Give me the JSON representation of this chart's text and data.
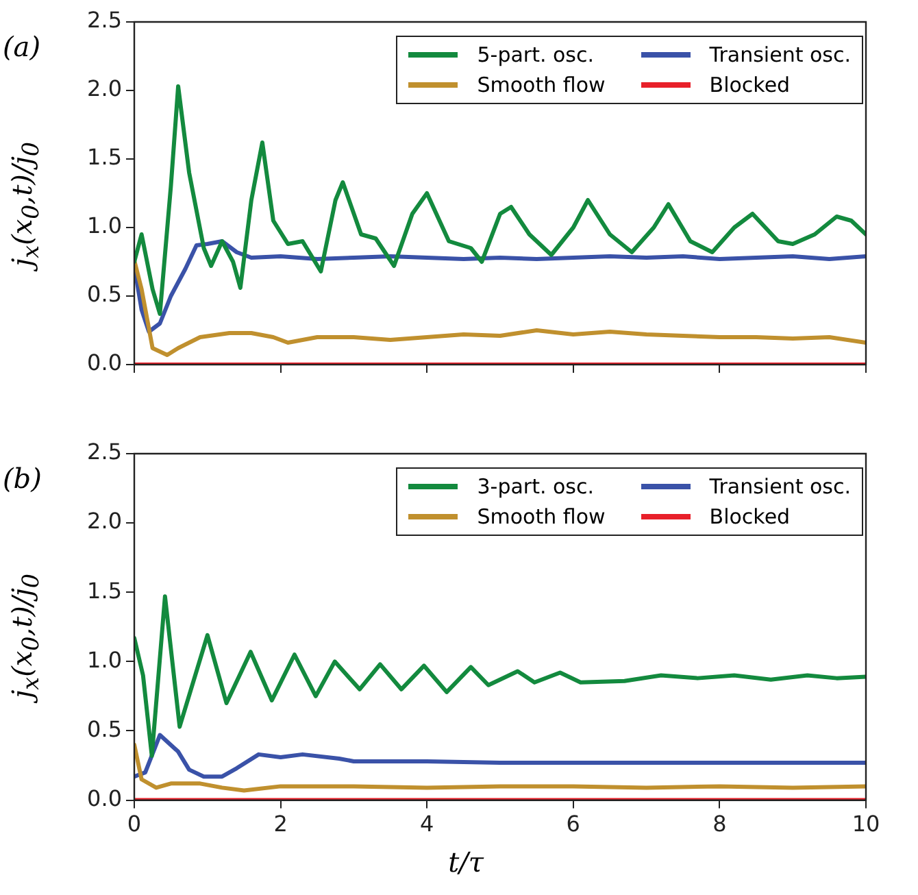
{
  "chart_data": [
    {
      "type": "line",
      "ylabel": "j$_{x}$(x$_{0}$,t)/j$_{0}$",
      "annotations": [
        "(a)"
      ],
      "legend": "top right",
      "grid": false,
      "marker": "none",
      "line_style": "solid",
      "tick_labels": "y",
      "xlim": [
        0,
        10
      ],
      "xticks": [
        0,
        2,
        4,
        6,
        8,
        10
      ],
      "ylim": [
        0,
        2.5
      ],
      "yticks": [
        {
          "value": 0,
          "label": "0.0"
        },
        {
          "value": 0.5,
          "label": "0.5"
        },
        {
          "value": 1,
          "label": "1.0"
        },
        {
          "value": 1.5,
          "label": "1.5"
        },
        {
          "value": 2,
          "label": "2.0"
        },
        {
          "value": 2.5,
          "label": "2.5"
        }
      ],
      "series": [
        {
          "name": "5-part. osc.",
          "color": "#138a3e",
          "x": [
            0,
            0.1,
            0.25,
            0.35,
            0.5,
            0.6,
            0.75,
            0.95,
            1.05,
            1.2,
            1.35,
            1.45,
            1.6,
            1.75,
            1.9,
            2.1,
            2.3,
            2.55,
            2.75,
            2.85,
            3.1,
            3.3,
            3.55,
            3.8,
            4.0,
            4.3,
            4.6,
            4.75,
            5.0,
            5.15,
            5.4,
            5.7,
            6.0,
            6.2,
            6.5,
            6.8,
            7.1,
            7.3,
            7.6,
            7.9,
            8.2,
            8.45,
            8.8,
            9.0,
            9.3,
            9.6,
            9.8,
            10
          ],
          "values": [
            0.75,
            0.95,
            0.55,
            0.37,
            1.3,
            2.03,
            1.4,
            0.85,
            0.72,
            0.9,
            0.75,
            0.56,
            1.2,
            1.62,
            1.05,
            0.88,
            0.9,
            0.68,
            1.2,
            1.33,
            0.95,
            0.92,
            0.72,
            1.1,
            1.25,
            0.9,
            0.85,
            0.75,
            1.1,
            1.15,
            0.95,
            0.8,
            1.0,
            1.2,
            0.95,
            0.82,
            1.0,
            1.17,
            0.9,
            0.82,
            1.0,
            1.1,
            0.9,
            0.88,
            0.95,
            1.08,
            1.05,
            0.95
          ]
        },
        {
          "name": "Smooth flow",
          "color": "#c0902e",
          "x": [
            0,
            0.1,
            0.25,
            0.45,
            0.6,
            0.9,
            1.3,
            1.6,
            1.9,
            2.1,
            2.5,
            3.0,
            3.5,
            4.0,
            4.5,
            5.0,
            5.5,
            6.0,
            6.5,
            7.0,
            7.5,
            8.0,
            8.5,
            9.0,
            9.5,
            10
          ],
          "values": [
            0.76,
            0.55,
            0.12,
            0.07,
            0.12,
            0.2,
            0.23,
            0.23,
            0.2,
            0.16,
            0.2,
            0.2,
            0.18,
            0.2,
            0.22,
            0.21,
            0.25,
            0.22,
            0.24,
            0.22,
            0.21,
            0.2,
            0.2,
            0.19,
            0.2,
            0.16
          ]
        },
        {
          "name": "Transient osc.",
          "color": "#3a52a8",
          "x": [
            0,
            0.1,
            0.2,
            0.35,
            0.5,
            0.7,
            0.85,
            1.0,
            1.2,
            1.4,
            1.6,
            2.0,
            2.5,
            3.0,
            3.5,
            4.0,
            4.5,
            5.0,
            5.5,
            6.0,
            6.5,
            7.0,
            7.5,
            8.0,
            8.5,
            9.0,
            9.5,
            10
          ],
          "values": [
            0.72,
            0.4,
            0.24,
            0.3,
            0.5,
            0.7,
            0.87,
            0.88,
            0.9,
            0.82,
            0.78,
            0.79,
            0.77,
            0.78,
            0.79,
            0.78,
            0.77,
            0.78,
            0.77,
            0.78,
            0.79,
            0.78,
            0.79,
            0.77,
            0.78,
            0.79,
            0.77,
            0.79
          ]
        },
        {
          "name": "Blocked",
          "color": "#e8202a",
          "x": [
            0,
            10
          ],
          "values": [
            0,
            0
          ]
        }
      ]
    },
    {
      "type": "line",
      "xlabel": "t/τ",
      "ylabel": "j$_{x}$(x$_{0}$,t)/j$_{0}$",
      "annotations": [
        "(b)"
      ],
      "legend": "top right",
      "grid": false,
      "marker": "none",
      "line_style": "solid",
      "xlim": [
        0,
        10
      ],
      "xticks": [
        0,
        2,
        4,
        6,
        8,
        10
      ],
      "ylim": [
        0,
        2.5
      ],
      "yticks": [
        {
          "value": 0,
          "label": "0.0"
        },
        {
          "value": 0.5,
          "label": "0.5"
        },
        {
          "value": 1,
          "label": "1.0"
        },
        {
          "value": 1.5,
          "label": "1.5"
        },
        {
          "value": 2,
          "label": "2.0"
        },
        {
          "value": 2.5,
          "label": "2.5"
        }
      ],
      "series": [
        {
          "name": "3-part. osc.",
          "color": "#138a3e",
          "x": [
            0,
            0.12,
            0.24,
            0.42,
            0.62,
            1.0,
            1.26,
            1.59,
            1.88,
            2.19,
            2.48,
            2.74,
            3.08,
            3.36,
            3.65,
            3.96,
            4.27,
            4.6,
            4.84,
            5.24,
            5.47,
            5.82,
            6.1,
            6.7,
            7.2,
            7.7,
            8.2,
            8.7,
            9.2,
            9.6,
            10
          ],
          "values": [
            1.17,
            0.9,
            0.32,
            1.47,
            0.53,
            1.19,
            0.7,
            1.07,
            0.72,
            1.05,
            0.75,
            1.0,
            0.8,
            0.98,
            0.8,
            0.97,
            0.78,
            0.96,
            0.83,
            0.93,
            0.85,
            0.92,
            0.85,
            0.86,
            0.9,
            0.88,
            0.9,
            0.87,
            0.9,
            0.88,
            0.89
          ]
        },
        {
          "name": "Smooth flow",
          "color": "#c0902e",
          "x": [
            0,
            0.1,
            0.3,
            0.5,
            0.9,
            1.2,
            1.5,
            2,
            3,
            4,
            5,
            6,
            7,
            8,
            9,
            10
          ],
          "values": [
            0.4,
            0.15,
            0.09,
            0.12,
            0.12,
            0.09,
            0.07,
            0.1,
            0.1,
            0.09,
            0.1,
            0.1,
            0.09,
            0.1,
            0.09,
            0.1
          ]
        },
        {
          "name": "Transient osc.",
          "color": "#3a52a8",
          "x": [
            0,
            0.15,
            0.35,
            0.6,
            0.75,
            0.95,
            1.2,
            1.4,
            1.7,
            2.0,
            2.3,
            2.8,
            3.0,
            4,
            5,
            6,
            7,
            8,
            9,
            10
          ],
          "values": [
            0.17,
            0.2,
            0.47,
            0.35,
            0.22,
            0.17,
            0.17,
            0.23,
            0.33,
            0.31,
            0.33,
            0.3,
            0.28,
            0.28,
            0.27,
            0.27,
            0.27,
            0.27,
            0.27,
            0.27
          ]
        },
        {
          "name": "Blocked",
          "color": "#e8202a",
          "x": [
            0,
            10
          ],
          "values": [
            0,
            0
          ]
        }
      ]
    }
  ]
}
